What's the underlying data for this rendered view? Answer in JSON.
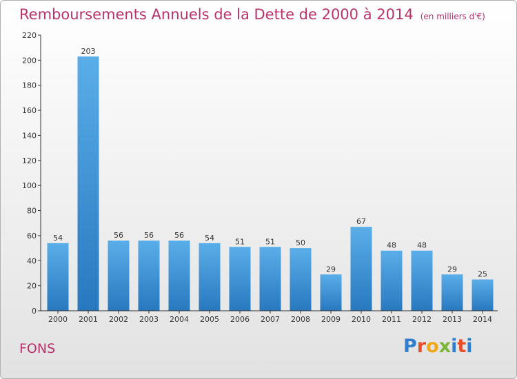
{
  "header": {
    "title": "Remboursements Annuels de la Dette de 2000 à 2014",
    "subtitle": "(en milliers d'€)"
  },
  "footer": {
    "place": "FONS",
    "logo_text": "Proxiti"
  },
  "colors": {
    "title": "#b9326c",
    "bar_top": "#5aaee8",
    "bar_bottom": "#2878bf"
  },
  "chart_data": {
    "type": "bar",
    "title": "Remboursements Annuels de la Dette de 2000 à 2014",
    "subtitle": "(en milliers d'€)",
    "categories": [
      "2000",
      "2001",
      "2002",
      "2003",
      "2004",
      "2005",
      "2006",
      "2007",
      "2008",
      "2009",
      "2010",
      "2011",
      "2012",
      "2013",
      "2014"
    ],
    "values": [
      54,
      203,
      56,
      56,
      56,
      54,
      51,
      51,
      50,
      29,
      67,
      48,
      48,
      29,
      25
    ],
    "ylim": [
      0,
      220
    ],
    "yticks": [
      0,
      20,
      40,
      60,
      80,
      100,
      120,
      140,
      160,
      180,
      200,
      220
    ],
    "xlabel": "",
    "ylabel": "",
    "grid": false,
    "legend": "none"
  }
}
